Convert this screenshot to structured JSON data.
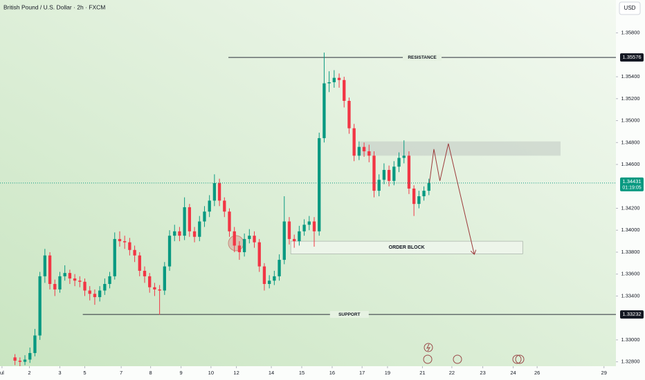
{
  "chart_data": {
    "type": "candlestick",
    "title": "British Pound / U.S. Dollar · 2h · FXCM",
    "currency": "USD",
    "up_color": "#089981",
    "down_color": "#f23645",
    "x": [
      0,
      1,
      2,
      3,
      4,
      5,
      6,
      7,
      8,
      9,
      10,
      11,
      12,
      13,
      14,
      15,
      16,
      17,
      18,
      19,
      20,
      21,
      22,
      23,
      24,
      25,
      26,
      27,
      28,
      29,
      30,
      31,
      32,
      33,
      34,
      35,
      36,
      37,
      38,
      39,
      40,
      41,
      42,
      43,
      44,
      45,
      46,
      47,
      48,
      49,
      50,
      51,
      52,
      53,
      54,
      55,
      56,
      57,
      58,
      59,
      60,
      61,
      62,
      63,
      64,
      65,
      66,
      67,
      68,
      69,
      70,
      71,
      72,
      73,
      74,
      75,
      76,
      77,
      78,
      79,
      80,
      81,
      82,
      83
    ],
    "open": [
      1.3284,
      1.3281,
      1.328,
      1.3282,
      1.3288,
      1.3304,
      1.3358,
      1.3377,
      1.3351,
      1.3346,
      1.3358,
      1.3361,
      1.3356,
      1.3354,
      1.3353,
      1.3345,
      1.3342,
      1.3339,
      1.3345,
      1.3351,
      1.3358,
      1.3392,
      1.339,
      1.3389,
      1.3382,
      1.3377,
      1.3363,
      1.3358,
      1.3348,
      1.3346,
      1.3345,
      1.3367,
      1.3395,
      1.3399,
      1.3395,
      1.3421,
      1.3399,
      1.3394,
      1.3408,
      1.3417,
      1.3427,
      1.3443,
      1.3427,
      1.3417,
      1.3399,
      1.3386,
      1.338,
      1.3392,
      1.3395,
      1.3389,
      1.3367,
      1.3351,
      1.3354,
      1.3358,
      1.3373,
      1.3408,
      1.3392,
      1.339,
      1.3399,
      1.3405,
      1.3408,
      1.3399,
      1.3484,
      1.3534,
      1.3535,
      1.3539,
      1.3537,
      1.3518,
      1.3493,
      1.3468,
      1.3476,
      1.3472,
      1.3468,
      1.3436,
      1.3446,
      1.3455,
      1.3445,
      1.3458,
      1.3466,
      1.3468,
      1.3438,
      1.3424,
      1.3431,
      1.3436
    ],
    "high": [
      1.3287,
      1.3284,
      1.3286,
      1.3293,
      1.331,
      1.3362,
      1.3383,
      1.338,
      1.3355,
      1.3362,
      1.3368,
      1.3364,
      1.336,
      1.3358,
      1.3356,
      1.3349,
      1.3346,
      1.3349,
      1.3356,
      1.3362,
      1.3398,
      1.3399,
      1.3395,
      1.3393,
      1.3386,
      1.338,
      1.3367,
      1.3361,
      1.3352,
      1.335,
      1.3371,
      1.34,
      1.3405,
      1.3403,
      1.343,
      1.3424,
      1.3403,
      1.3413,
      1.3422,
      1.3432,
      1.3451,
      1.3447,
      1.343,
      1.342,
      1.3403,
      1.339,
      1.3397,
      1.3401,
      1.3399,
      1.3392,
      1.337,
      1.3359,
      1.3363,
      1.3378,
      1.3431,
      1.3412,
      1.3396,
      1.3404,
      1.341,
      1.3413,
      1.3412,
      1.3489,
      1.3562,
      1.3545,
      1.3546,
      1.3543,
      1.354,
      1.3521,
      1.3497,
      1.3481,
      1.348,
      1.3478,
      1.3472,
      1.3451,
      1.3461,
      1.3459,
      1.3463,
      1.3471,
      1.3482,
      1.3472,
      1.3441,
      1.3436,
      1.344,
      1.3447
    ],
    "low": [
      1.3277,
      1.3276,
      1.3277,
      1.3279,
      1.3285,
      1.33,
      1.3352,
      1.3346,
      1.334,
      1.3343,
      1.3354,
      1.3351,
      1.3349,
      1.3348,
      1.334,
      1.3336,
      1.3332,
      1.3335,
      1.3341,
      1.3347,
      1.3355,
      1.3385,
      1.3383,
      1.3377,
      1.3371,
      1.3358,
      1.3352,
      1.3343,
      1.334,
      1.3323,
      1.3341,
      1.3363,
      1.339,
      1.339,
      1.3391,
      1.3394,
      1.3389,
      1.339,
      1.3403,
      1.3412,
      1.3422,
      1.3422,
      1.3412,
      1.3394,
      1.338,
      1.3373,
      1.3376,
      1.3388,
      1.3384,
      1.3362,
      1.3345,
      1.3347,
      1.335,
      1.3354,
      1.3369,
      1.3387,
      1.3384,
      1.3386,
      1.3395,
      1.34,
      1.3385,
      1.3395,
      1.348,
      1.3526,
      1.353,
      1.353,
      1.3512,
      1.3488,
      1.3463,
      1.3464,
      1.3467,
      1.3462,
      1.343,
      1.3431,
      1.3442,
      1.344,
      1.3441,
      1.3453,
      1.3461,
      1.3433,
      1.3413,
      1.342,
      1.3427,
      1.3432
    ],
    "close": [
      1.3281,
      1.328,
      1.3282,
      1.3288,
      1.3304,
      1.3358,
      1.3377,
      1.3351,
      1.3346,
      1.3358,
      1.3361,
      1.3356,
      1.3354,
      1.3353,
      1.3345,
      1.3342,
      1.3339,
      1.3345,
      1.3351,
      1.3358,
      1.3392,
      1.339,
      1.3389,
      1.3382,
      1.3377,
      1.3363,
      1.3358,
      1.3348,
      1.3346,
      1.3345,
      1.3367,
      1.3395,
      1.3399,
      1.3395,
      1.3421,
      1.3399,
      1.3394,
      1.3408,
      1.3417,
      1.3427,
      1.3443,
      1.3427,
      1.3417,
      1.3399,
      1.3386,
      1.338,
      1.3392,
      1.3395,
      1.3389,
      1.3367,
      1.3351,
      1.3354,
      1.3358,
      1.3373,
      1.3408,
      1.3392,
      1.339,
      1.3399,
      1.3405,
      1.3408,
      1.3399,
      1.3484,
      1.3534,
      1.3535,
      1.3539,
      1.3537,
      1.3518,
      1.3493,
      1.3468,
      1.3476,
      1.3472,
      1.3468,
      1.3436,
      1.3446,
      1.3455,
      1.3445,
      1.3458,
      1.3466,
      1.3468,
      1.3438,
      1.3424,
      1.3431,
      1.3436,
      1.3443
    ],
    "xlim": [
      -3,
      120.5
    ],
    "ylim": [
      1.3276,
      1.361
    ],
    "xticks": [
      {
        "value": -2.6,
        "label": "ul"
      },
      {
        "value": 2.9,
        "label": "2"
      },
      {
        "value": 9,
        "label": "3"
      },
      {
        "value": 14,
        "label": "5"
      },
      {
        "value": 21.3,
        "label": "7"
      },
      {
        "value": 27.2,
        "label": "8"
      },
      {
        "value": 33.3,
        "label": "9"
      },
      {
        "value": 39.3,
        "label": "10"
      },
      {
        "value": 44.4,
        "label": "12"
      },
      {
        "value": 51.4,
        "label": "14"
      },
      {
        "value": 57.5,
        "label": "15"
      },
      {
        "value": 63.6,
        "label": "16"
      },
      {
        "value": 69.6,
        "label": "17"
      },
      {
        "value": 74.7,
        "label": "19"
      },
      {
        "value": 81.7,
        "label": "21"
      },
      {
        "value": 87.6,
        "label": "22"
      },
      {
        "value": 93.8,
        "label": "23"
      },
      {
        "value": 99.9,
        "label": "24"
      },
      {
        "value": 104.7,
        "label": "26"
      },
      {
        "value": 118.1,
        "label": "29"
      }
    ],
    "yticks": [
      {
        "value": 1.328,
        "label": "1.32800"
      },
      {
        "value": 1.33,
        "label": "1.33000"
      },
      {
        "value": 1.334,
        "label": "1.33400"
      },
      {
        "value": 1.336,
        "label": "1.33600"
      },
      {
        "value": 1.338,
        "label": "1.33800"
      },
      {
        "value": 1.34,
        "label": "1.34000"
      },
      {
        "value": 1.342,
        "label": "1.34200"
      },
      {
        "value": 1.346,
        "label": "1.34600"
      },
      {
        "value": 1.348,
        "label": "1.34800"
      },
      {
        "value": 1.35,
        "label": "1.35000"
      },
      {
        "value": 1.352,
        "label": "1.35200"
      },
      {
        "value": 1.354,
        "label": "1.35400"
      },
      {
        "value": 1.358,
        "label": "1.35800"
      }
    ],
    "levels": [
      {
        "label": "RESISTANCE",
        "value": 1.35576,
        "from": 42.8
      },
      {
        "label": "SUPPORT",
        "value": 1.33232,
        "from": 13.6
      }
    ],
    "current": {
      "value": 1.34431,
      "countdown": "01:19:05"
    },
    "zones": [
      {
        "x": [
          69.2,
          109.4
        ],
        "y": [
          1.3468,
          1.3481
        ]
      },
      {
        "label": "ORDER BLOCK",
        "x": [
          55.3,
          101.8
        ],
        "y": [
          1.33784,
          1.339
        ]
      }
    ],
    "projection": {
      "x": [
        83.1,
        84,
        85.2,
        86.9,
        92.1
      ],
      "y": [
        1.3443,
        1.3474,
        1.3445,
        1.3479,
        1.3378
      ]
    }
  }
}
